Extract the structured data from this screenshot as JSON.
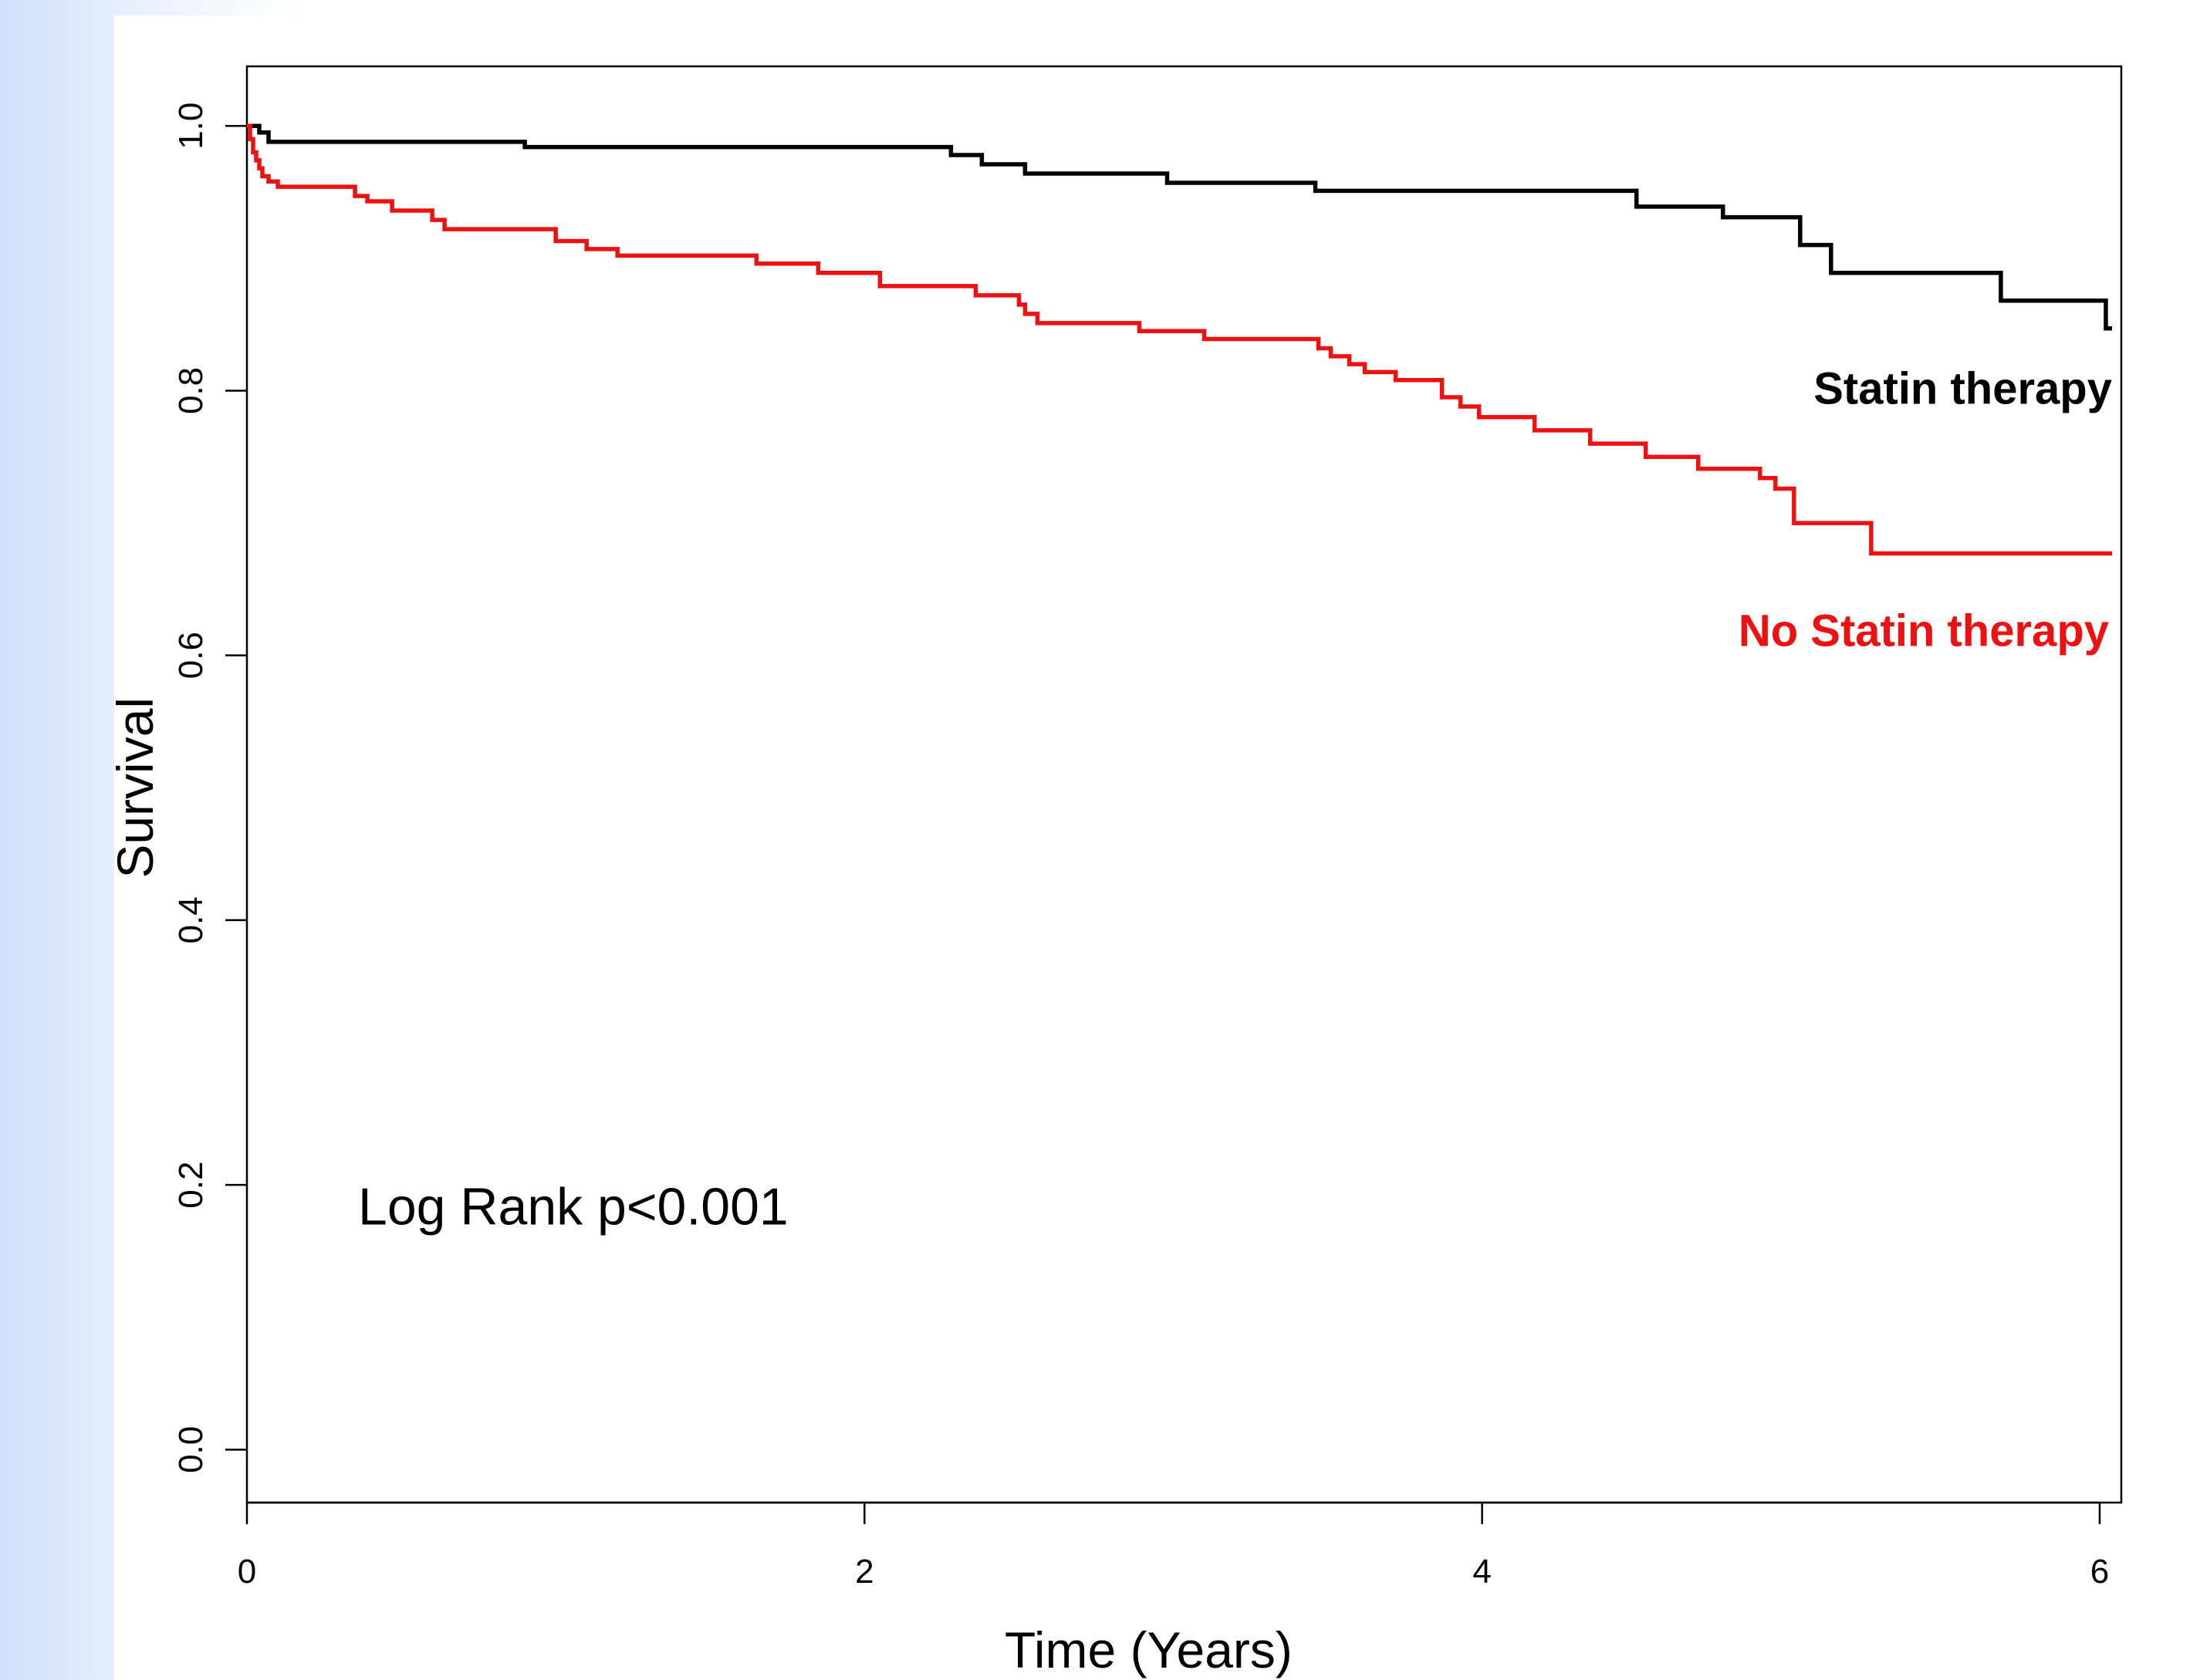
{
  "chart_data": {
    "type": "line",
    "title": "",
    "xlabel": "Time (Years)",
    "ylabel": "Survival",
    "xlim": [
      0,
      6.07
    ],
    "ylim": [
      -0.04,
      1.045
    ],
    "x_ticks": [
      0,
      2,
      4,
      6
    ],
    "x_tick_labels": [
      "0",
      "2",
      "4",
      "6"
    ],
    "y_ticks": [
      0.0,
      0.2,
      0.4,
      0.6,
      0.8,
      1.0
    ],
    "y_tick_labels": [
      "0.0",
      "0.2",
      "0.4",
      "0.6",
      "0.8",
      "1.0"
    ],
    "grid": false,
    "step": true,
    "annotation": "Log Rank p<0.001",
    "series": [
      {
        "name": "Statin therapy",
        "color": "#000000",
        "x": [
          0,
          0.04,
          0.07,
          0.9,
          2.28,
          2.38,
          2.52,
          2.98,
          3.46,
          4.5,
          4.78,
          5.03,
          5.13,
          5.68,
          6.02,
          6.04
        ],
        "y": [
          1.0,
          0.995,
          0.988,
          0.984,
          0.978,
          0.971,
          0.964,
          0.957,
          0.951,
          0.939,
          0.931,
          0.91,
          0.889,
          0.868,
          0.847,
          0.847
        ]
      },
      {
        "name": "No Statin therapy",
        "color": "#ee1111",
        "x": [
          0,
          0.01,
          0.02,
          0.03,
          0.04,
          0.05,
          0.07,
          0.1,
          0.35,
          0.39,
          0.47,
          0.6,
          0.64,
          1.0,
          1.1,
          1.2,
          1.65,
          1.85,
          2.05,
          2.36,
          2.5,
          2.52,
          2.56,
          2.89,
          3.1,
          3.47,
          3.51,
          3.57,
          3.62,
          3.72,
          3.87,
          3.93,
          3.99,
          4.17,
          4.35,
          4.53,
          4.7,
          4.9,
          4.95,
          5.01,
          5.26,
          6.04
        ],
        "y": [
          1.0,
          0.99,
          0.98,
          0.974,
          0.968,
          0.962,
          0.958,
          0.954,
          0.947,
          0.943,
          0.936,
          0.929,
          0.922,
          0.913,
          0.907,
          0.902,
          0.896,
          0.889,
          0.879,
          0.872,
          0.865,
          0.858,
          0.851,
          0.845,
          0.839,
          0.832,
          0.826,
          0.82,
          0.814,
          0.808,
          0.795,
          0.788,
          0.78,
          0.77,
          0.76,
          0.75,
          0.741,
          0.734,
          0.726,
          0.7,
          0.677,
          0.677
        ]
      }
    ]
  }
}
